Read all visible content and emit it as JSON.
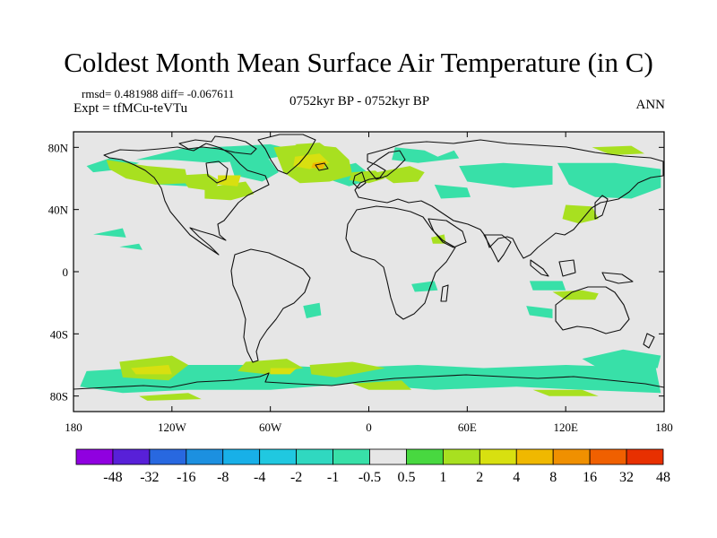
{
  "title": "Coldest Month Mean Surface Air Temperature (in C)",
  "stats_line": "rmsd= 0.481988 diff= -0.067611",
  "experiment": "Expt = tfMCu-teVTu",
  "period": "0752kyr BP - 0752kyr BP",
  "season": "ANN",
  "chart_data": {
    "type": "heatmap",
    "projection": "cylindrical equidistant",
    "x_range": [
      -180,
      180
    ],
    "y_range": [
      -90,
      90
    ],
    "x_ticks": [
      {
        "value": -180,
        "label": "180"
      },
      {
        "value": -120,
        "label": "120W"
      },
      {
        "value": -60,
        "label": "60W"
      },
      {
        "value": 0,
        "label": "0"
      },
      {
        "value": 60,
        "label": "60E"
      },
      {
        "value": 120,
        "label": "120E"
      },
      {
        "value": 180,
        "label": "180"
      }
    ],
    "y_ticks": [
      {
        "value": 80,
        "label": "80N"
      },
      {
        "value": 40,
        "label": "40N"
      },
      {
        "value": 0,
        "label": "0"
      },
      {
        "value": -40,
        "label": "40S"
      },
      {
        "value": -80,
        "label": "80S"
      }
    ],
    "colorbar": {
      "labels": [
        "-48",
        "-32",
        "-16",
        "-8",
        "-4",
        "-2",
        "-1",
        "-0.5",
        "0.5",
        "1",
        "2",
        "4",
        "8",
        "16",
        "32",
        "48"
      ],
      "colors": [
        "#9000e0",
        "#5820d8",
        "#2868e0",
        "#1c90e0",
        "#18b0e8",
        "#20c8e0",
        "#30d8c0",
        "#38e0a8",
        "#e6e6e6",
        "#48d840",
        "#a8e020",
        "#d8e010",
        "#f0b800",
        "#f09000",
        "#f06000",
        "#e83000"
      ]
    },
    "regions": [
      {
        "level": "-1",
        "points": [
          [
            -142,
            72
          ],
          [
            -115,
            79
          ],
          [
            -60,
            82
          ],
          [
            -40,
            77
          ],
          [
            -65,
            72
          ],
          [
            -95,
            70
          ],
          [
            -120,
            72
          ]
        ]
      },
      {
        "level": "-1",
        "points": [
          [
            -172,
            68
          ],
          [
            -158,
            73
          ],
          [
            -140,
            70
          ],
          [
            -150,
            66
          ],
          [
            -168,
            64
          ]
        ]
      },
      {
        "level": "-1",
        "points": [
          [
            -135,
            64
          ],
          [
            -112,
            62
          ],
          [
            -110,
            55
          ],
          [
            -128,
            56
          ]
        ]
      },
      {
        "level": "-1",
        "points": [
          [
            -85,
            72
          ],
          [
            -62,
            74
          ],
          [
            -55,
            64
          ],
          [
            -65,
            58
          ],
          [
            -82,
            62
          ]
        ]
      },
      {
        "level": "-1",
        "points": [
          [
            -24,
            66
          ],
          [
            -8,
            70
          ],
          [
            4,
            60
          ],
          [
            -12,
            55
          ],
          [
            -26,
            60
          ]
        ]
      },
      {
        "level": "-1",
        "points": [
          [
            16,
            80
          ],
          [
            34,
            78
          ],
          [
            42,
            74
          ],
          [
            52,
            78
          ],
          [
            55,
            73
          ],
          [
            30,
            70
          ],
          [
            14,
            72
          ]
        ]
      },
      {
        "level": "-1",
        "points": [
          [
            55,
            68
          ],
          [
            82,
            70
          ],
          [
            112,
            68
          ],
          [
            112,
            56
          ],
          [
            88,
            54
          ],
          [
            60,
            58
          ]
        ]
      },
      {
        "level": "-1",
        "points": [
          [
            115,
            70
          ],
          [
            150,
            70
          ],
          [
            178,
            66
          ],
          [
            178,
            54
          ],
          [
            160,
            47
          ],
          [
            138,
            48
          ],
          [
            122,
            56
          ]
        ]
      },
      {
        "level": "-1",
        "points": [
          [
            40,
            56
          ],
          [
            60,
            54
          ],
          [
            62,
            48
          ],
          [
            44,
            47
          ]
        ]
      },
      {
        "level": "-1",
        "points": [
          [
            -152,
            16
          ],
          [
            -140,
            18
          ],
          [
            -138,
            14
          ]
        ]
      },
      {
        "level": "-1",
        "points": [
          [
            -168,
            24
          ],
          [
            -150,
            28
          ],
          [
            -148,
            22
          ]
        ]
      },
      {
        "level": "-1",
        "points": [
          [
            -40,
            -22
          ],
          [
            -30,
            -20
          ],
          [
            -29,
            -28
          ],
          [
            -38,
            -30
          ]
        ]
      },
      {
        "level": "-1",
        "points": [
          [
            26,
            -8
          ],
          [
            40,
            -6
          ],
          [
            42,
            -12
          ],
          [
            28,
            -13
          ]
        ]
      },
      {
        "level": "-1",
        "points": [
          [
            98,
            -6
          ],
          [
            118,
            -6
          ],
          [
            120,
            -12
          ],
          [
            100,
            -12
          ]
        ]
      },
      {
        "level": "-1",
        "points": [
          [
            96,
            -22
          ],
          [
            112,
            -24
          ],
          [
            112,
            -30
          ],
          [
            98,
            -28
          ]
        ]
      },
      {
        "level": "-1",
        "points": [
          [
            -172,
            -64
          ],
          [
            -110,
            -60
          ],
          [
            -60,
            -60
          ],
          [
            -20,
            -62
          ],
          [
            30,
            -60
          ],
          [
            70,
            -62
          ],
          [
            120,
            -60
          ],
          [
            175,
            -62
          ],
          [
            178,
            -78
          ],
          [
            130,
            -76
          ],
          [
            90,
            -74
          ],
          [
            40,
            -76
          ],
          [
            -10,
            -72
          ],
          [
            -60,
            -76
          ],
          [
            -110,
            -76
          ],
          [
            -150,
            -78
          ],
          [
            -176,
            -74
          ]
        ]
      },
      {
        "level": "-1",
        "points": [
          [
            130,
            -56
          ],
          [
            155,
            -50
          ],
          [
            178,
            -54
          ],
          [
            176,
            -62
          ],
          [
            140,
            -62
          ]
        ]
      },
      {
        "level": "1",
        "points": [
          [
            -160,
            72
          ],
          [
            -135,
            68
          ],
          [
            -112,
            66
          ],
          [
            -110,
            57
          ],
          [
            -130,
            56
          ],
          [
            -148,
            60
          ],
          [
            -158,
            66
          ]
        ]
      },
      {
        "level": "1",
        "points": [
          [
            -115,
            62
          ],
          [
            -98,
            63
          ],
          [
            -90,
            58
          ],
          [
            -96,
            52
          ],
          [
            -110,
            54
          ]
        ]
      },
      {
        "level": "1",
        "points": [
          [
            -100,
            54
          ],
          [
            -75,
            58
          ],
          [
            -70,
            50
          ],
          [
            -84,
            46
          ],
          [
            -100,
            47
          ]
        ]
      },
      {
        "level": "1",
        "points": [
          [
            -58,
            80
          ],
          [
            -38,
            82
          ],
          [
            -20,
            80
          ],
          [
            -12,
            72
          ],
          [
            -10,
            62
          ],
          [
            -24,
            58
          ],
          [
            -42,
            57
          ],
          [
            -52,
            64
          ]
        ]
      },
      {
        "level": "1",
        "points": [
          [
            -10,
            64
          ],
          [
            4,
            65
          ],
          [
            10,
            60
          ],
          [
            0,
            57
          ],
          [
            -12,
            59
          ]
        ]
      },
      {
        "level": "1",
        "points": [
          [
            5,
            64
          ],
          [
            25,
            68
          ],
          [
            34,
            64
          ],
          [
            30,
            58
          ],
          [
            15,
            57
          ]
        ]
      },
      {
        "level": "1",
        "points": [
          [
            -45,
            82
          ],
          [
            -30,
            83
          ],
          [
            -26,
            80
          ],
          [
            -40,
            79
          ]
        ]
      },
      {
        "level": "1",
        "points": [
          [
            120,
            43
          ],
          [
            136,
            42
          ],
          [
            140,
            34
          ],
          [
            128,
            31
          ],
          [
            118,
            34
          ]
        ]
      },
      {
        "level": "1",
        "points": [
          [
            136,
            80
          ],
          [
            160,
            81
          ],
          [
            168,
            76
          ],
          [
            148,
            75
          ]
        ]
      },
      {
        "level": "1",
        "points": [
          [
            112,
            -13
          ],
          [
            130,
            -12
          ],
          [
            140,
            -14
          ],
          [
            138,
            -18
          ],
          [
            120,
            -18
          ]
        ]
      },
      {
        "level": "1",
        "points": [
          [
            -152,
            -58
          ],
          [
            -120,
            -54
          ],
          [
            -110,
            -60
          ],
          [
            -122,
            -70
          ],
          [
            -150,
            -68
          ]
        ]
      },
      {
        "level": "1",
        "points": [
          [
            -75,
            -58
          ],
          [
            -50,
            -56
          ],
          [
            -40,
            -62
          ],
          [
            -62,
            -66
          ],
          [
            -80,
            -64
          ]
        ]
      },
      {
        "level": "1",
        "points": [
          [
            -36,
            -60
          ],
          [
            -10,
            -58
          ],
          [
            10,
            -62
          ],
          [
            -20,
            -68
          ],
          [
            -35,
            -66
          ]
        ]
      },
      {
        "level": "1",
        "points": [
          [
            -10,
            -72
          ],
          [
            20,
            -70
          ],
          [
            26,
            -76
          ],
          [
            0,
            -76
          ]
        ]
      },
      {
        "level": "1",
        "points": [
          [
            -140,
            -80
          ],
          [
            -110,
            -78
          ],
          [
            -102,
            -82
          ],
          [
            -135,
            -83
          ]
        ]
      },
      {
        "level": "1",
        "points": [
          [
            100,
            -76
          ],
          [
            130,
            -76
          ],
          [
            140,
            -80
          ],
          [
            110,
            -80
          ]
        ]
      },
      {
        "level": "1",
        "points": [
          [
            38,
            22
          ],
          [
            46,
            24
          ],
          [
            47,
            18
          ],
          [
            39,
            18
          ]
        ]
      },
      {
        "level": "2",
        "points": [
          [
            -45,
            74
          ],
          [
            -30,
            76
          ],
          [
            -24,
            70
          ],
          [
            -36,
            66
          ],
          [
            -46,
            68
          ]
        ]
      },
      {
        "level": "2",
        "points": [
          [
            -92,
            62
          ],
          [
            -78,
            62
          ],
          [
            -80,
            55
          ],
          [
            -92,
            56
          ]
        ]
      },
      {
        "level": "2",
        "points": [
          [
            -145,
            -62
          ],
          [
            -122,
            -60
          ],
          [
            -120,
            -66
          ],
          [
            -142,
            -66
          ]
        ]
      },
      {
        "level": "2",
        "points": [
          [
            -60,
            -62
          ],
          [
            -44,
            -62
          ],
          [
            -48,
            -66
          ],
          [
            -60,
            -66
          ]
        ]
      },
      {
        "level": "4",
        "points": [
          [
            -34,
            70
          ],
          [
            -26,
            71
          ],
          [
            -28,
            66
          ],
          [
            -35,
            67
          ]
        ]
      }
    ]
  }
}
